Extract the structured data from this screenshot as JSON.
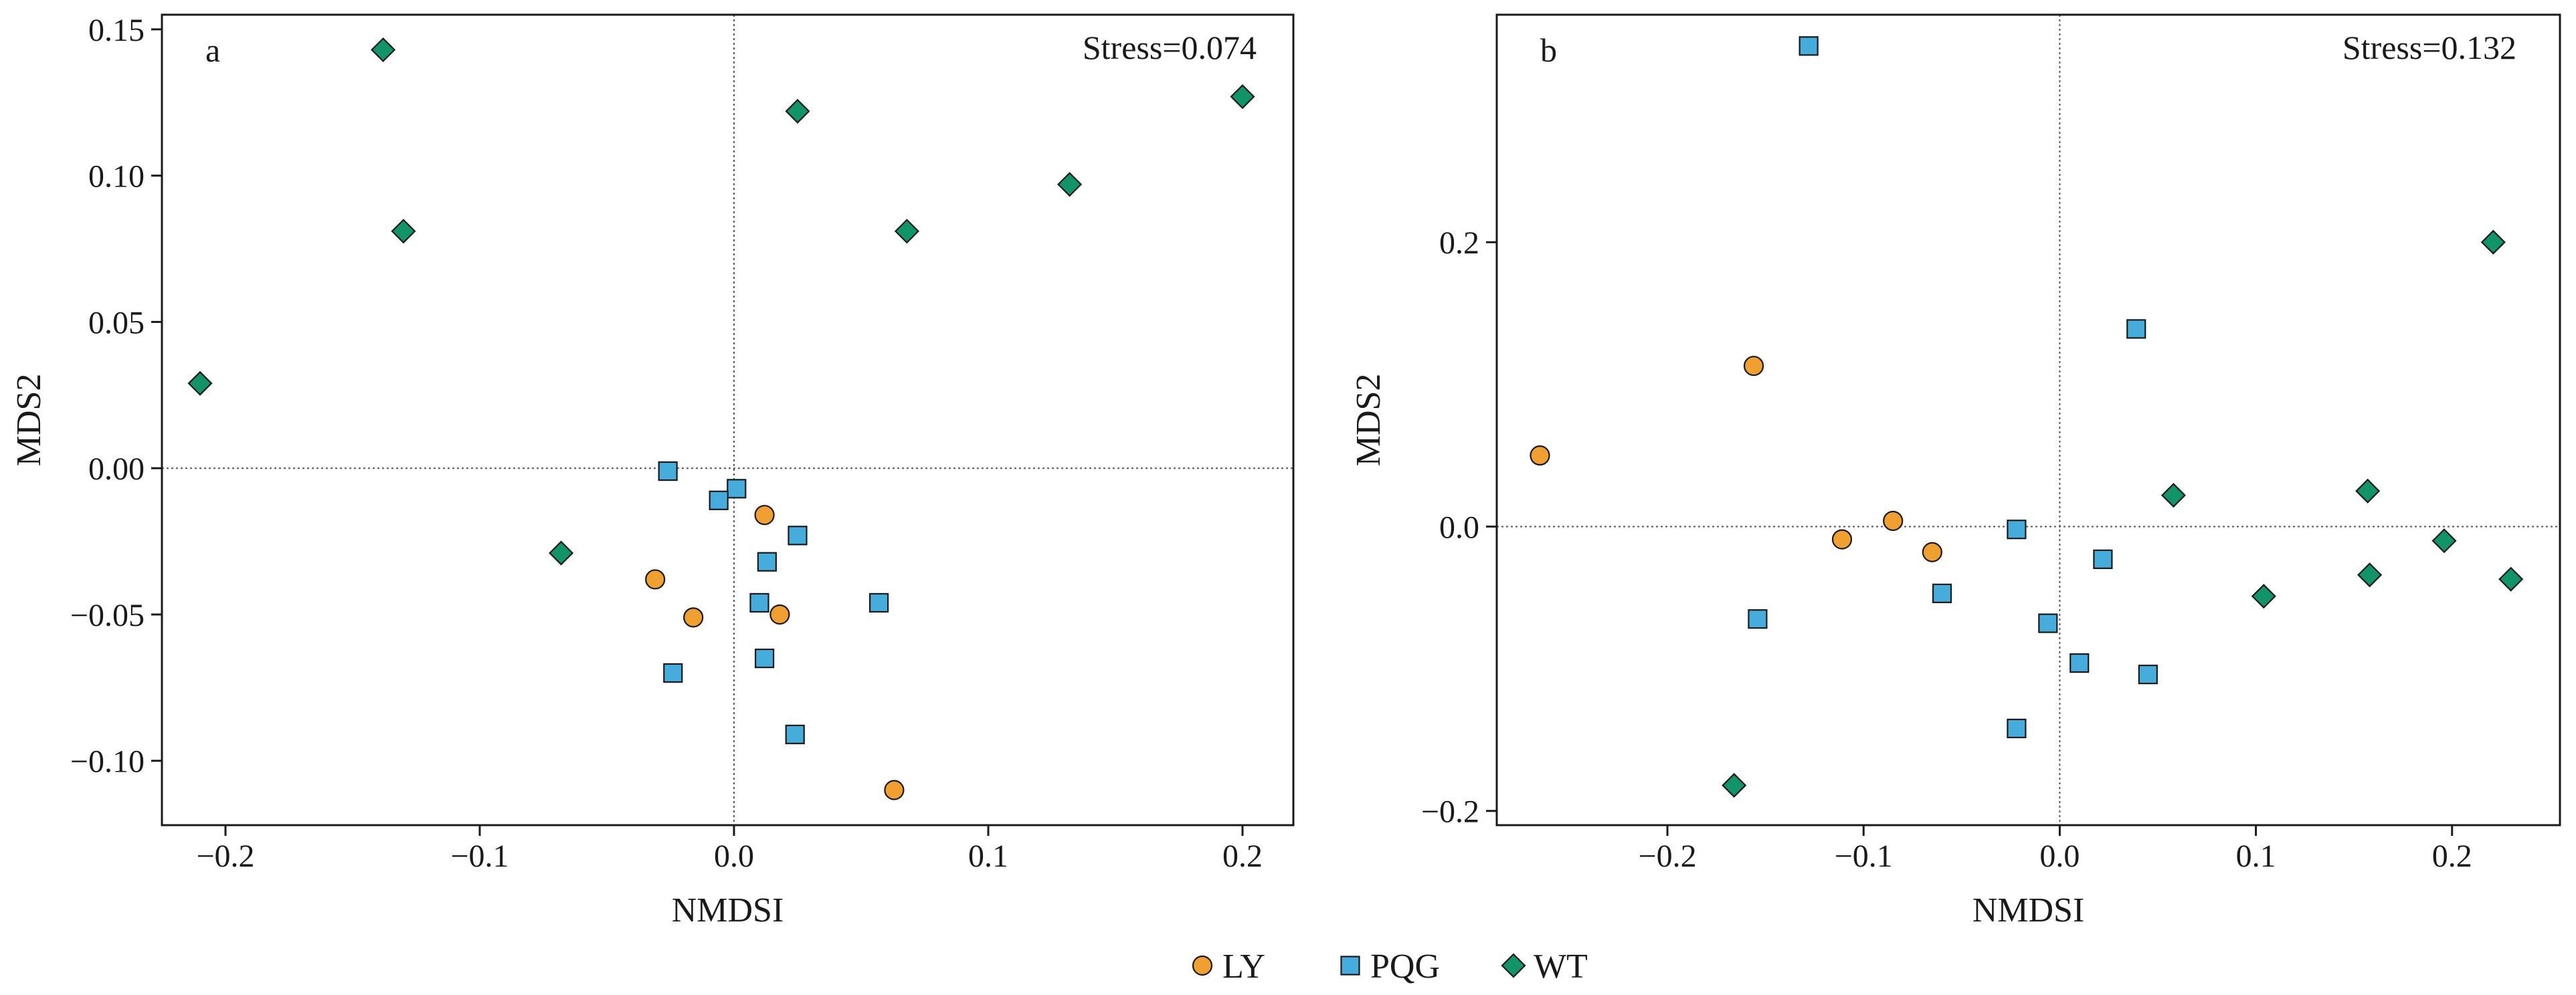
{
  "legend": {
    "placement": "bottom-center",
    "items": [
      {
        "label": "LY",
        "marker": "circle",
        "color": "#f0a030"
      },
      {
        "label": "PQG",
        "marker": "square",
        "color": "#45acdc"
      },
      {
        "label": "WT",
        "marker": "diamond",
        "color": "#12946a"
      }
    ]
  },
  "chart_data": [
    {
      "type": "scatter",
      "panel_label": "a",
      "annotation": "Stress=0.074",
      "xlabel": "NMDSI",
      "ylabel": "MDS2",
      "xlim": [
        -0.225,
        0.22
      ],
      "ylim": [
        -0.122,
        0.155
      ],
      "xticks": [
        -0.2,
        -0.1,
        0.0,
        0.1,
        0.2
      ],
      "xtick_labels": [
        "−0.2",
        "−0.1",
        "0.0",
        "0.1",
        "0.2"
      ],
      "yticks": [
        -0.1,
        -0.05,
        0.0,
        0.05,
        0.1,
        0.15
      ],
      "ytick_labels": [
        "−0.10",
        "−0.05",
        "0.00",
        "0.05",
        "0.10",
        "0.15"
      ],
      "reference_lines": {
        "x": 0,
        "y": 0
      },
      "series": [
        {
          "name": "LY",
          "points": [
            [
              0.012,
              -0.016
            ],
            [
              -0.031,
              -0.038
            ],
            [
              -0.016,
              -0.051
            ],
            [
              0.018,
              -0.05
            ],
            [
              0.063,
              -0.11
            ]
          ]
        },
        {
          "name": "PQG",
          "points": [
            [
              -0.026,
              -0.001
            ],
            [
              0.001,
              -0.007
            ],
            [
              -0.006,
              -0.011
            ],
            [
              0.025,
              -0.023
            ],
            [
              0.013,
              -0.032
            ],
            [
              0.01,
              -0.046
            ],
            [
              0.057,
              -0.046
            ],
            [
              0.012,
              -0.065
            ],
            [
              -0.024,
              -0.07
            ],
            [
              0.024,
              -0.091
            ]
          ]
        },
        {
          "name": "WT",
          "points": [
            [
              -0.138,
              0.143
            ],
            [
              0.025,
              0.122
            ],
            [
              0.2,
              0.127
            ],
            [
              -0.13,
              0.081
            ],
            [
              0.068,
              0.081
            ],
            [
              0.132,
              0.097
            ],
            [
              -0.21,
              0.029
            ],
            [
              -0.068,
              -0.029
            ]
          ]
        }
      ]
    },
    {
      "type": "scatter",
      "panel_label": "b",
      "annotation": "Stress=0.132",
      "xlabel": "NMDSI",
      "ylabel": "MDS2",
      "xlim": [
        -0.287,
        0.255
      ],
      "ylim": [
        -0.21,
        0.36
      ],
      "xticks": [
        -0.2,
        -0.1,
        0.0,
        0.1,
        0.2
      ],
      "xtick_labels": [
        "−0.2",
        "−0.1",
        "0.0",
        "0.1",
        "0.2"
      ],
      "yticks": [
        -0.2,
        0.0,
        0.2
      ],
      "ytick_labels": [
        "−0.2",
        "0.0",
        "0.2"
      ],
      "reference_lines": {
        "x": 0,
        "y": 0
      },
      "series": [
        {
          "name": "LY",
          "points": [
            [
              -0.265,
              0.05
            ],
            [
              -0.156,
              0.113
            ],
            [
              -0.111,
              -0.009
            ],
            [
              -0.085,
              0.004
            ],
            [
              -0.065,
              -0.018
            ]
          ]
        },
        {
          "name": "PQG",
          "points": [
            [
              -0.128,
              0.338
            ],
            [
              0.039,
              0.139
            ],
            [
              -0.022,
              -0.002
            ],
            [
              0.022,
              -0.023
            ],
            [
              -0.06,
              -0.047
            ],
            [
              -0.154,
              -0.065
            ],
            [
              -0.006,
              -0.068
            ],
            [
              0.01,
              -0.096
            ],
            [
              0.045,
              -0.104
            ],
            [
              -0.022,
              -0.142
            ]
          ]
        },
        {
          "name": "WT",
          "points": [
            [
              0.221,
              0.2
            ],
            [
              0.058,
              0.022
            ],
            [
              0.157,
              0.025
            ],
            [
              0.196,
              -0.01
            ],
            [
              0.104,
              -0.049
            ],
            [
              0.158,
              -0.034
            ],
            [
              0.23,
              -0.037
            ],
            [
              -0.166,
              -0.182
            ]
          ]
        }
      ]
    }
  ]
}
